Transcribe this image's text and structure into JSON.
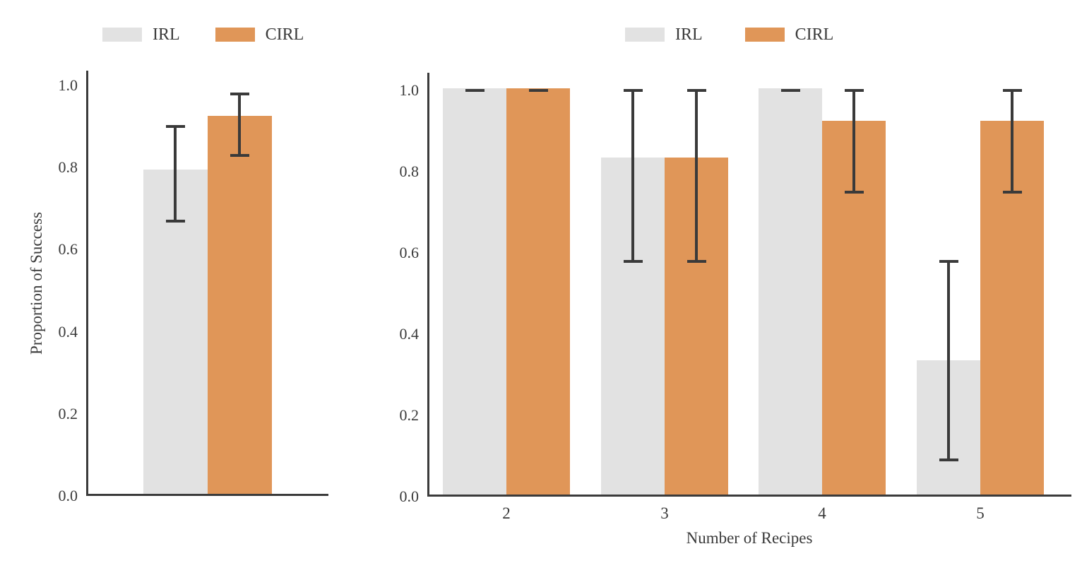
{
  "colors": {
    "irl_bar": "#E2E2E2",
    "cirl_bar": "#E09658",
    "error_bar": "#3A3A3A",
    "axis": "#3B3B3B",
    "text": "#3A3A3A",
    "background": "#FFFFFF"
  },
  "chart_data": [
    {
      "type": "bar",
      "panel": "overall-proportion",
      "categories": [
        ""
      ],
      "xlabel": "",
      "ylabel": "Proportion of Success",
      "ylim": [
        0.0,
        1.0
      ],
      "yticks": [
        0.0,
        0.2,
        0.4,
        0.6,
        0.8,
        1.0
      ],
      "grid": false,
      "legend_position": "top",
      "series": [
        {
          "name": "IRL",
          "color": "#E2E2E2",
          "values": [
            0.79
          ],
          "error_low": [
            0.67
          ],
          "error_high": [
            0.9
          ]
        },
        {
          "name": "CIRL",
          "color": "#E09658",
          "values": [
            0.92
          ],
          "error_low": [
            0.83
          ],
          "error_high": [
            0.98
          ]
        }
      ]
    },
    {
      "type": "bar",
      "panel": "by-number-of-recipes",
      "categories": [
        "2",
        "3",
        "4",
        "5"
      ],
      "xlabel": "Number of Recipes",
      "ylabel": "",
      "ylim": [
        0.0,
        1.0
      ],
      "yticks": [
        0.0,
        0.2,
        0.4,
        0.6,
        0.8,
        1.0
      ],
      "grid": false,
      "legend_position": "top",
      "series": [
        {
          "name": "IRL",
          "color": "#E2E2E2",
          "values": [
            1.0,
            0.83,
            1.0,
            0.33
          ],
          "error_low": [
            1.0,
            0.58,
            1.0,
            0.09
          ],
          "error_high": [
            1.0,
            1.0,
            1.0,
            0.58
          ]
        },
        {
          "name": "CIRL",
          "color": "#E09658",
          "values": [
            1.0,
            0.83,
            0.92,
            0.92
          ],
          "error_low": [
            1.0,
            0.58,
            0.75,
            0.75
          ],
          "error_high": [
            1.0,
            1.0,
            1.0,
            1.0
          ]
        }
      ]
    }
  ]
}
